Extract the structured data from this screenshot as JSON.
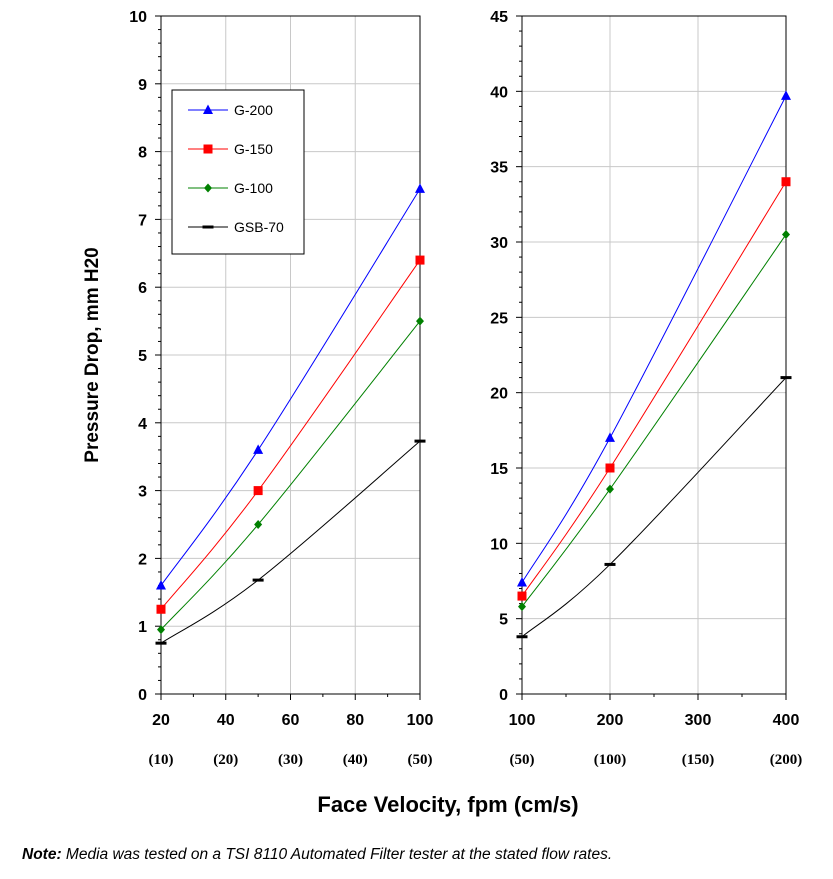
{
  "chart_data": [
    {
      "type": "line",
      "ylabel": "Pressure Drop, mm H20",
      "xlim": [
        20,
        100
      ],
      "ylim": [
        0,
        10
      ],
      "x_ticks": [
        20,
        40,
        60,
        80,
        100
      ],
      "y_ticks": [
        0,
        1,
        2,
        3,
        4,
        5,
        6,
        7,
        8,
        9,
        10
      ],
      "secondary_x_labels": [
        {
          "x": 20,
          "label": "(10)"
        },
        {
          "x": 40,
          "label": "(20)"
        },
        {
          "x": 60,
          "label": "(30)"
        },
        {
          "x": 80,
          "label": "(40)"
        },
        {
          "x": 100,
          "label": "(50)"
        }
      ],
      "grid": true,
      "legend_position": "top-left",
      "x": [
        20,
        50,
        100
      ],
      "series": [
        {
          "name": "G-200",
          "values": [
            1.6,
            3.6,
            7.45
          ],
          "color": "#0000ff",
          "marker": "triangle"
        },
        {
          "name": "G-150",
          "values": [
            1.25,
            3.0,
            6.4
          ],
          "color": "#ff0000",
          "marker": "square"
        },
        {
          "name": "G-100",
          "values": [
            0.95,
            2.5,
            5.5
          ],
          "color": "#008000",
          "marker": "diamond"
        },
        {
          "name": "GSB-70",
          "values": [
            0.75,
            1.68,
            3.73
          ],
          "color": "#000000",
          "marker": "dash"
        }
      ]
    },
    {
      "type": "line",
      "xlim": [
        100,
        400
      ],
      "ylim": [
        0,
        45
      ],
      "x_ticks": [
        100,
        200,
        300,
        400
      ],
      "y_ticks": [
        0,
        5,
        10,
        15,
        20,
        25,
        30,
        35,
        40,
        45
      ],
      "secondary_x_labels": [
        {
          "x": 100,
          "label": "(50)"
        },
        {
          "x": 200,
          "label": "(100)"
        },
        {
          "x": 300,
          "label": "(150)"
        },
        {
          "x": 400,
          "label": "(200)"
        }
      ],
      "grid": true,
      "x": [
        100,
        200,
        400
      ],
      "series": [
        {
          "name": "G-200",
          "values": [
            7.4,
            17.0,
            39.7
          ],
          "color": "#0000ff",
          "marker": "triangle"
        },
        {
          "name": "G-150",
          "values": [
            6.5,
            15.0,
            34.0
          ],
          "color": "#ff0000",
          "marker": "square"
        },
        {
          "name": "G-100",
          "values": [
            5.8,
            13.6,
            30.5
          ],
          "color": "#008000",
          "marker": "diamond"
        },
        {
          "name": "GSB-70",
          "values": [
            3.8,
            8.6,
            21.0
          ],
          "color": "#000000",
          "marker": "dash"
        }
      ]
    }
  ],
  "shared_xlabel": "Face Velocity, fpm (cm/s)",
  "note": {
    "prefix": "Note:",
    "text": " Media was tested on a TSI 8110 Automated Filter tester at the stated flow rates."
  }
}
